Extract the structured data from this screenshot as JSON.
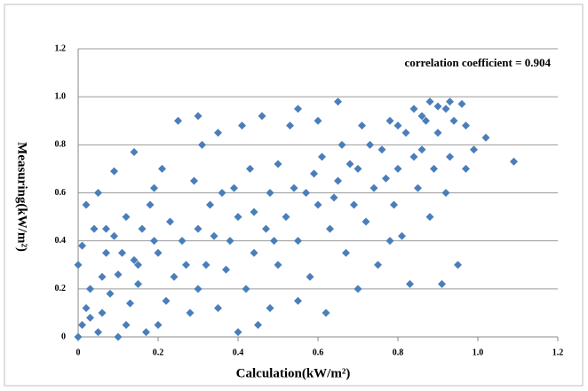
{
  "chart_data": {
    "type": "scatter",
    "annotation": "correlation coefficient = 0.904",
    "x_label": "Calculation(kW/m²)",
    "y_label": "Measuring(kW/m²)",
    "color": "#4a7ebb",
    "grid": true,
    "xlim": [
      0,
      1.2
    ],
    "ylim": [
      0,
      1.2
    ],
    "xticks": [
      0,
      0.2,
      0.4,
      0.6,
      0.8,
      {
        "value": 1,
        "label": "1.0"
      },
      1.2
    ],
    "yticks": [
      0,
      0.2,
      0.4,
      0.6,
      0.8,
      {
        "value": 1,
        "label": "1.0"
      },
      1.2
    ],
    "x": [
      0,
      0.01,
      0.02,
      0.03,
      0,
      0.01,
      0.05,
      0.06,
      0.08,
      0.1,
      0.07,
      0.04,
      0.09,
      0.12,
      0.13,
      0.15,
      0.14,
      0.16,
      0.12,
      0.18,
      0.2,
      0.22,
      0.24,
      0.2,
      0.23,
      0.19,
      0.21,
      0.26,
      0.28,
      0.3,
      0.32,
      0.3,
      0.33,
      0.29,
      0.31,
      0.35,
      0.37,
      0.38,
      0.36,
      0.4,
      0.42,
      0.44,
      0.45,
      0.43,
      0.41,
      0.47,
      0.48,
      0.5,
      0.52,
      0.5,
      0.53,
      0.55,
      0.57,
      0.58,
      0.6,
      0.61,
      0.6,
      0.63,
      0.65,
      0.66,
      0.67,
      0.69,
      0.7,
      0.71,
      0.72,
      0.74,
      0.75,
      0.76,
      0.78,
      0.79,
      0.8,
      0.81,
      0.82,
      0.83,
      0.84,
      0.85,
      0.86,
      0.87,
      0.88,
      0.89,
      0.9,
      0.91,
      0.92,
      0.93,
      0.94,
      0.95,
      0.96,
      0.97,
      0.99,
      1.02,
      1.09,
      0.14,
      0.09,
      0.02,
      0.05,
      0.25,
      0.3,
      0.35,
      0.46,
      0.55,
      0.65,
      0.7,
      0.62,
      0.55,
      0.48,
      0.4,
      0.78,
      0.88,
      0.92,
      0.97,
      0.1,
      0.17,
      0.06,
      0.11,
      0.03,
      0.07,
      0.15,
      0.19,
      0.27,
      0.34,
      0.39,
      0.44,
      0.49,
      0.54,
      0.59,
      0.64,
      0.68,
      0.73,
      0.77,
      0.8,
      0.84,
      0.86,
      0.9,
      0.93
    ],
    "values": [
      0,
      0.05,
      0.12,
      0.2,
      0.3,
      0.38,
      0.02,
      0.1,
      0.18,
      0.26,
      0.35,
      0.45,
      0.42,
      0.05,
      0.14,
      0.22,
      0.32,
      0.45,
      0.5,
      0.55,
      0.05,
      0.15,
      0.25,
      0.35,
      0.48,
      0.62,
      0.7,
      0.4,
      0.1,
      0.2,
      0.3,
      0.45,
      0.55,
      0.65,
      0.8,
      0.12,
      0.28,
      0.4,
      0.6,
      0.5,
      0.2,
      0.35,
      0.05,
      0.7,
      0.88,
      0.45,
      0.6,
      0.3,
      0.5,
      0.72,
      0.88,
      0.4,
      0.6,
      0.25,
      0.55,
      0.75,
      0.9,
      0.45,
      0.65,
      0.8,
      0.35,
      0.55,
      0.7,
      0.88,
      0.48,
      0.62,
      0.3,
      0.78,
      0.9,
      0.55,
      0.7,
      0.42,
      0.85,
      0.22,
      0.95,
      0.62,
      0.78,
      0.9,
      0.98,
      0.7,
      0.85,
      0.22,
      0.95,
      0.75,
      0.9,
      0.3,
      0.97,
      0.88,
      0.78,
      0.83,
      0.73,
      0.77,
      0.69,
      0.55,
      0.6,
      0.9,
      0.92,
      0.85,
      0.92,
      0.95,
      0.98,
      0.2,
      0.1,
      0.15,
      0.12,
      0.02,
      0.4,
      0.5,
      0.6,
      0.7,
      0,
      0.02,
      0.25,
      0.35,
      0.08,
      0.45,
      0.3,
      0.4,
      0.3,
      0.42,
      0.62,
      0.52,
      0.4,
      0.62,
      0.68,
      0.58,
      0.72,
      0.8,
      0.66,
      0.88,
      0.75,
      0.92,
      0.96,
      0.98
    ]
  }
}
